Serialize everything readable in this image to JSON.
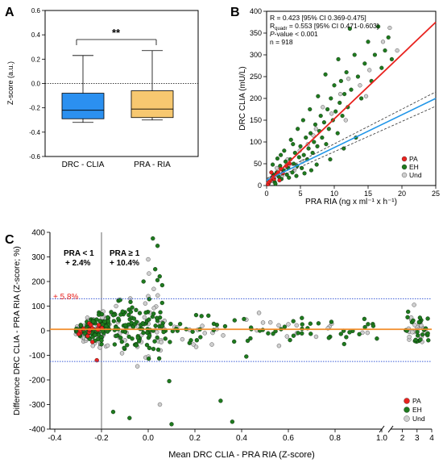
{
  "panels": {
    "A": "A",
    "B": "B",
    "C": "C"
  },
  "colors": {
    "pa": "#e8231f",
    "eh": "#1e7a1e",
    "und": "#cfcfcf",
    "box_drc": "#2b90f0",
    "box_pra": "#f7c870",
    "fit_red": "#e8231f",
    "fit_blue": "#2196e8",
    "mean_line": "#f28c28",
    "loa_line": "#3b5bd6"
  },
  "chart_data": [
    {
      "type": "box",
      "panel": "A",
      "ylabel": "Z-score (a.u.)",
      "ylim": [
        -0.6,
        0.6
      ],
      "yticks": [
        "0.6",
        "0.4",
        "0.2",
        "0.0",
        "-0.2",
        "-0.4",
        "-0.6"
      ],
      "categories": [
        "DRC - CLIA",
        "PRA - RIA"
      ],
      "boxes": [
        {
          "min": -0.32,
          "q1": -0.29,
          "median": -0.22,
          "q3": -0.08,
          "max": 0.23
        },
        {
          "min": -0.3,
          "q1": -0.28,
          "median": -0.21,
          "q3": -0.06,
          "max": 0.27
        }
      ],
      "reference_line": 0.0,
      "significance": "**"
    },
    {
      "type": "scatter",
      "panel": "B",
      "xlabel": "PRA RIA (ng x ml⁻¹ x h⁻¹)",
      "ylabel": "DRC CLIA (mU/L)",
      "xlim": [
        0,
        25
      ],
      "ylim": [
        0,
        400
      ],
      "xticks": [
        "0",
        "5",
        "10",
        "15",
        "20",
        "25"
      ],
      "yticks": [
        "0",
        "50",
        "100",
        "150",
        "200",
        "250",
        "300",
        "350",
        "400"
      ],
      "stats": [
        "R = 0.423 [95% CI 0.369-0.475]",
        "R",
        "quadr",
        " = 0.553 [95% CI 0.471-0.603]",
        "P",
        "-value < 0.001",
        "n = 918"
      ],
      "legend": [
        "PA",
        "EH",
        "Und"
      ],
      "fit_red": [
        [
          0,
          5
        ],
        [
          25,
          375
        ]
      ],
      "fit_blue": [
        [
          0,
          12
        ],
        [
          25,
          200
        ]
      ],
      "ci_upper": [
        [
          0,
          16
        ],
        [
          25,
          215
        ]
      ],
      "ci_lower": [
        [
          0,
          8
        ],
        [
          25,
          182
        ]
      ],
      "points_eh": [
        [
          0.3,
          5
        ],
        [
          0.5,
          12
        ],
        [
          0.8,
          18
        ],
        [
          1.0,
          25
        ],
        [
          1.2,
          8
        ],
        [
          1.5,
          30
        ],
        [
          1.8,
          20
        ],
        [
          2.0,
          45
        ],
        [
          2.2,
          15
        ],
        [
          2.5,
          35
        ],
        [
          2.8,
          55
        ],
        [
          3.0,
          25
        ],
        [
          3.2,
          40
        ],
        [
          3.5,
          60
        ],
        [
          3.8,
          30
        ],
        [
          4.0,
          50
        ],
        [
          4.2,
          75
        ],
        [
          4.5,
          45
        ],
        [
          4.8,
          65
        ],
        [
          5.0,
          90
        ],
        [
          5.2,
          40
        ],
        [
          5.5,
          70
        ],
        [
          5.8,
          110
        ],
        [
          6.0,
          60
        ],
        [
          6.2,
          85
        ],
        [
          6.5,
          120
        ],
        [
          6.8,
          75
        ],
        [
          7.0,
          100
        ],
        [
          7.2,
          140
        ],
        [
          7.5,
          90
        ],
        [
          7.8,
          125
        ],
        [
          8.0,
          160
        ],
        [
          8.2,
          110
        ],
        [
          8.5,
          145
        ],
        [
          8.8,
          95
        ],
        [
          9.0,
          175
        ],
        [
          9.2,
          130
        ],
        [
          9.5,
          200
        ],
        [
          9.8,
          150
        ],
        [
          10.0,
          230
        ],
        [
          10.2,
          170
        ],
        [
          10.5,
          120
        ],
        [
          10.8,
          190
        ],
        [
          11.0,
          240
        ],
        [
          11.2,
          160
        ],
        [
          11.5,
          210
        ],
        [
          11.8,
          260
        ],
        [
          12.0,
          180
        ],
        [
          12.5,
          220
        ],
        [
          13.0,
          300
        ],
        [
          13.5,
          250
        ],
        [
          14.0,
          200
        ],
        [
          14.5,
          280
        ],
        [
          15.0,
          330
        ],
        [
          15.5,
          240
        ],
        [
          16.0,
          300
        ],
        [
          16.5,
          365
        ],
        [
          17.0,
          270
        ],
        [
          17.5,
          310
        ],
        [
          18.0,
          340
        ],
        [
          18.5,
          290
        ],
        [
          12.3,
          360
        ],
        [
          10.6,
          290
        ],
        [
          8.7,
          255
        ],
        [
          7.6,
          205
        ],
        [
          6.4,
          175
        ],
        [
          5.4,
          150
        ],
        [
          4.6,
          130
        ],
        [
          3.6,
          105
        ],
        [
          2.6,
          80
        ],
        [
          1.6,
          62
        ],
        [
          0.9,
          48
        ],
        [
          3.3,
          18
        ],
        [
          4.4,
          22
        ],
        [
          5.6,
          28
        ],
        [
          6.6,
          35
        ],
        [
          7.4,
          48
        ],
        [
          9.4,
          60
        ],
        [
          11.4,
          85
        ],
        [
          13.2,
          110
        ],
        [
          2.1,
          70
        ],
        [
          1.3,
          4
        ],
        [
          3.9,
          95
        ]
      ],
      "points_pa": [
        [
          0.2,
          3
        ],
        [
          0.4,
          8
        ],
        [
          0.6,
          12
        ],
        [
          0.9,
          20
        ],
        [
          1.1,
          15
        ],
        [
          1.4,
          25
        ],
        [
          1.7,
          30
        ],
        [
          2.1,
          38
        ],
        [
          2.4,
          28
        ],
        [
          2.9,
          45
        ],
        [
          3.4,
          50
        ],
        [
          0.7,
          30
        ],
        [
          1.9,
          12
        ]
      ],
      "points_und": [
        [
          0.4,
          15
        ],
        [
          0.9,
          10
        ],
        [
          1.5,
          40
        ],
        [
          2.3,
          22
        ],
        [
          3.1,
          60
        ],
        [
          4.1,
          35
        ],
        [
          4.9,
          80
        ],
        [
          6.1,
          95
        ],
        [
          7.3,
          130
        ],
        [
          8.3,
          180
        ],
        [
          9.6,
          165
        ],
        [
          10.9,
          210
        ],
        [
          12.1,
          245
        ],
        [
          13.8,
          230
        ],
        [
          15.2,
          265
        ],
        [
          17.2,
          330
        ],
        [
          18.2,
          362
        ],
        [
          19.3,
          310
        ],
        [
          5.3,
          55
        ],
        [
          6.9,
          115
        ],
        [
          11.7,
          150
        ],
        [
          14.7,
          205
        ]
      ]
    },
    {
      "type": "scatter",
      "panel": "C",
      "xlabel": "Mean DRC CLIA - PRA RIA (Z-score)",
      "ylabel": "Difference DRC CLIA - PRA RIA (Z-score; %)",
      "xlim_main": [
        -0.4,
        1.0
      ],
      "xlim_break": [
        1.2,
        4
      ],
      "ylim": [
        -400,
        400
      ],
      "xticks_main": [
        "-0.4",
        "-0.2",
        "0.0",
        "0.2",
        "0.4",
        "0.6",
        "0.8",
        "1.0"
      ],
      "xticks_break": [
        "2",
        "3",
        "4"
      ],
      "yticks": [
        "400",
        "300",
        "200",
        "100",
        "0",
        "-100",
        "-200",
        "-300",
        "-400"
      ],
      "mean_bias": 5.8,
      "mean_label": "+ 5.8%",
      "loa_upper": 130,
      "loa_lower": -125,
      "threshold_x": -0.2,
      "group_left_title": "PRA < 1",
      "group_left_value": "+ 2.4%",
      "group_right_title": "PRA ≥ 1",
      "group_right_value": "+ 10.4%",
      "legend": [
        "PA",
        "EH",
        "Und"
      ]
    }
  ]
}
